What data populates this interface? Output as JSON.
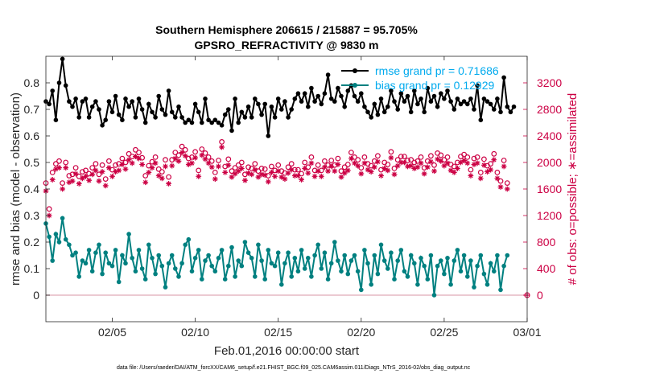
{
  "chart_data": {
    "type": "line",
    "title": "Southern Hemisphere 206615 / 215887 = 95.705%",
    "subtitle": "GPSRO_REFRACTIVITY @ 9830 m",
    "xlabel": "Feb.01,2016 00:00:00 start",
    "ylabel_left": "rmse and bias (model - observation)",
    "ylabel_right": "# of obs: o=possible; ∗=assimilated",
    "footer": "data file: /Users/raeder/DAI/ATM_forcXX/CAM6_setup/f.e21.FHIST_BGC.f09_025.CAM6assim.011/Diags_NTrS_2016-02/obs_diag_output.nc",
    "xlim": [
      1,
      30
    ],
    "x_ticks": [
      "02/05",
      "02/10",
      "02/15",
      "02/20",
      "02/25",
      "03/01"
    ],
    "x_tick_values": [
      5,
      10,
      15,
      20,
      25,
      30
    ],
    "ylim_left": [
      -0.1,
      0.9
    ],
    "y_ticks_left": [
      "0",
      "0.1",
      "0.2",
      "0.3",
      "0.4",
      "0.5",
      "0.6",
      "0.7",
      "0.8"
    ],
    "y_tick_values_left": [
      0,
      0.1,
      0.2,
      0.3,
      0.4,
      0.5,
      0.6,
      0.7,
      0.8
    ],
    "ylim_right": [
      -400,
      3600
    ],
    "y_ticks_right": [
      "0",
      "400",
      "800",
      "1200",
      "1600",
      "2000",
      "2400",
      "2800",
      "3200"
    ],
    "y_tick_values_right": [
      0,
      400,
      800,
      1200,
      1600,
      2000,
      2400,
      2800,
      3200
    ],
    "legend_placement": "top-right",
    "grid": false,
    "series": [
      {
        "name": "rmse grand pr = 0.71686",
        "color": "#000000",
        "axis": "left",
        "values": [
          0.73,
          0.72,
          0.77,
          0.66,
          0.8,
          0.89,
          0.79,
          0.73,
          0.71,
          0.74,
          0.67,
          0.73,
          0.74,
          0.67,
          0.71,
          0.73,
          0.7,
          0.64,
          0.66,
          0.73,
          0.69,
          0.75,
          0.68,
          0.66,
          0.74,
          0.71,
          0.73,
          0.67,
          0.74,
          0.7,
          0.65,
          0.72,
          0.69,
          0.67,
          0.75,
          0.7,
          0.68,
          0.77,
          0.69,
          0.67,
          0.71,
          0.67,
          0.65,
          0.66,
          0.65,
          0.72,
          0.69,
          0.65,
          0.74,
          0.66,
          0.65,
          0.66,
          0.65,
          0.64,
          0.68,
          0.7,
          0.62,
          0.74,
          0.65,
          0.69,
          0.67,
          0.71,
          0.67,
          0.74,
          0.72,
          0.68,
          0.72,
          0.6,
          0.71,
          0.67,
          0.74,
          0.7,
          0.73,
          0.67,
          0.7,
          0.74,
          0.76,
          0.73,
          0.76,
          0.71,
          0.78,
          0.73,
          0.75,
          0.72,
          0.76,
          0.83,
          0.74,
          0.73,
          0.78,
          0.75,
          0.71,
          0.77,
          0.79,
          0.75,
          0.73,
          0.76,
          0.71,
          0.69,
          0.67,
          0.72,
          0.68,
          0.74,
          0.69,
          0.71,
          0.77,
          0.73,
          0.7,
          0.76,
          0.73,
          0.75,
          0.69,
          0.77,
          0.72,
          0.74,
          0.69,
          0.78,
          0.73,
          0.75,
          0.71,
          0.76,
          0.74,
          0.77,
          0.73,
          0.7,
          0.74,
          0.72,
          0.73,
          0.72,
          0.74,
          0.7,
          0.79,
          0.66,
          0.74,
          0.73,
          0.72,
          0.7,
          0.74,
          0.69,
          0.82,
          0.71,
          0.69,
          0.71
        ],
        "x_start": 1,
        "x_step": 0.2
      },
      {
        "name": "bias grand pr = 0.12929",
        "color": "#008080",
        "axis": "left",
        "values": [
          0.27,
          0.22,
          0.13,
          0.23,
          0.2,
          0.29,
          0.21,
          0.19,
          0.15,
          0.16,
          0.07,
          0.13,
          0.12,
          0.17,
          0.09,
          0.16,
          0.19,
          0.08,
          0.16,
          0.12,
          0.11,
          0.17,
          0.05,
          0.15,
          0.12,
          0.23,
          0.14,
          0.09,
          0.17,
          0.1,
          0.06,
          0.19,
          0.14,
          0.08,
          0.15,
          0.11,
          0.03,
          0.12,
          0.15,
          0.1,
          0.07,
          0.12,
          0.19,
          0.21,
          0.09,
          0.14,
          0.17,
          0.06,
          0.13,
          0.15,
          0.11,
          0.09,
          0.14,
          0.17,
          0.06,
          0.11,
          0.18,
          0.07,
          0.13,
          0.11,
          0.2,
          0.16,
          0.14,
          0.07,
          0.19,
          0.13,
          0.06,
          0.17,
          0.12,
          0.11,
          0.16,
          0.04,
          0.12,
          0.16,
          0.07,
          0.14,
          0.09,
          0.17,
          0.1,
          0.14,
          0.07,
          0.15,
          0.19,
          0.1,
          0.16,
          0.06,
          0.12,
          0.2,
          0.13,
          0.09,
          0.15,
          0.08,
          0.13,
          0.15,
          0.09,
          0.02,
          0.17,
          0.12,
          0.04,
          0.15,
          0.08,
          0.19,
          0.13,
          0.1,
          0.16,
          0.06,
          0.13,
          0.17,
          0.09,
          0.07,
          0.15,
          0.12,
          0.04,
          0.14,
          0.11,
          0.06,
          0.15,
          0.0,
          0.11,
          0.13,
          0.08,
          0.14,
          0.04,
          0.13,
          0.17,
          0.09,
          0.15,
          0.07,
          0.13,
          0.03,
          0.11,
          0.15,
          0.08,
          0.04,
          0.12,
          0.09,
          0.15,
          0.02,
          0.11,
          0.15
        ],
        "x_start": 1,
        "x_step": 0.2
      },
      {
        "name": "possible",
        "color": "#cc0044",
        "axis": "right",
        "marker": "o",
        "values": [
          1690,
          1300,
          1850,
          1980,
          2020,
          1690,
          2000,
          1800,
          1820,
          1920,
          1790,
          1860,
          1880,
          1830,
          1920,
          1980,
          1820,
          1960,
          1750,
          2020,
          1890,
          1960,
          1980,
          2060,
          2000,
          2130,
          2090,
          2190,
          2150,
          2070,
          1800,
          1950,
          2010,
          2080,
          1900,
          1860,
          2040,
          1780,
          2040,
          2150,
          2110,
          2240,
          2190,
          2060,
          2080,
          2160,
          1880,
          2200,
          2140,
          2080,
          2020,
          1850,
          2030,
          2310,
          1940,
          2050,
          1870,
          1920,
          1960,
          2000,
          1820,
          1930,
          1910,
          1980,
          1870,
          1910,
          1900,
          1800,
          1940,
          1880,
          1960,
          1870,
          1840,
          1930,
          1980,
          1890,
          1890,
          1830,
          2000,
          1930,
          2080,
          1880,
          1960,
          1880,
          2020,
          1960,
          2030,
          1960,
          2060,
          1870,
          1930,
          1970,
          2150,
          2080,
          2040,
          1920,
          2080,
          1980,
          1950,
          2020,
          2100,
          1890,
          2000,
          1970,
          2160,
          1910,
          2040,
          2090,
          2090,
          2030,
          2040,
          2000,
          2020,
          2080,
          1920,
          2020,
          2100,
          1960,
          2140,
          2110,
          2040,
          2080,
          1970,
          1940,
          2000,
          2090,
          2120,
          2080,
          1890,
          2060,
          2080,
          1850,
          2050,
          1950,
          1980,
          2130,
          1850,
          1720,
          2030,
          1690
        ],
        "x_start": 1,
        "x_step": 0.2
      },
      {
        "name": "assimilated",
        "color": "#cc0044",
        "axis": "right",
        "marker": "*",
        "values": [
          1570,
          1200,
          1740,
          1900,
          1920,
          1600,
          1920,
          1700,
          1720,
          1830,
          1680,
          1760,
          1790,
          1730,
          1820,
          1880,
          1720,
          1860,
          1650,
          1920,
          1790,
          1860,
          1880,
          1970,
          1900,
          2040,
          1990,
          2090,
          2060,
          1970,
          1700,
          1850,
          1920,
          1990,
          1800,
          1760,
          1940,
          1680,
          1950,
          2060,
          2020,
          2150,
          2100,
          1970,
          1990,
          2070,
          1790,
          2110,
          2050,
          1990,
          1930,
          1750,
          1940,
          2230,
          1850,
          1960,
          1780,
          1830,
          1870,
          1910,
          1730,
          1840,
          1820,
          1890,
          1780,
          1820,
          1810,
          1710,
          1850,
          1790,
          1870,
          1780,
          1750,
          1840,
          1890,
          1800,
          1800,
          1740,
          1910,
          1840,
          1990,
          1790,
          1870,
          1790,
          1930,
          1870,
          1940,
          1870,
          1970,
          1780,
          1840,
          1880,
          2060,
          1990,
          1950,
          1830,
          1990,
          1890,
          1860,
          1930,
          2010,
          1800,
          1910,
          1880,
          2070,
          1820,
          1950,
          2000,
          2000,
          1940,
          1950,
          1910,
          1930,
          1990,
          1830,
          1930,
          2010,
          1870,
          2050,
          2020,
          1950,
          1990,
          1880,
          1850,
          1910,
          2000,
          2030,
          1990,
          1800,
          1970,
          1990,
          1760,
          1960,
          1860,
          1890,
          2040,
          1760,
          1630,
          1940,
          1600
        ],
        "x_start": 1,
        "x_step": 0.2
      }
    ]
  }
}
